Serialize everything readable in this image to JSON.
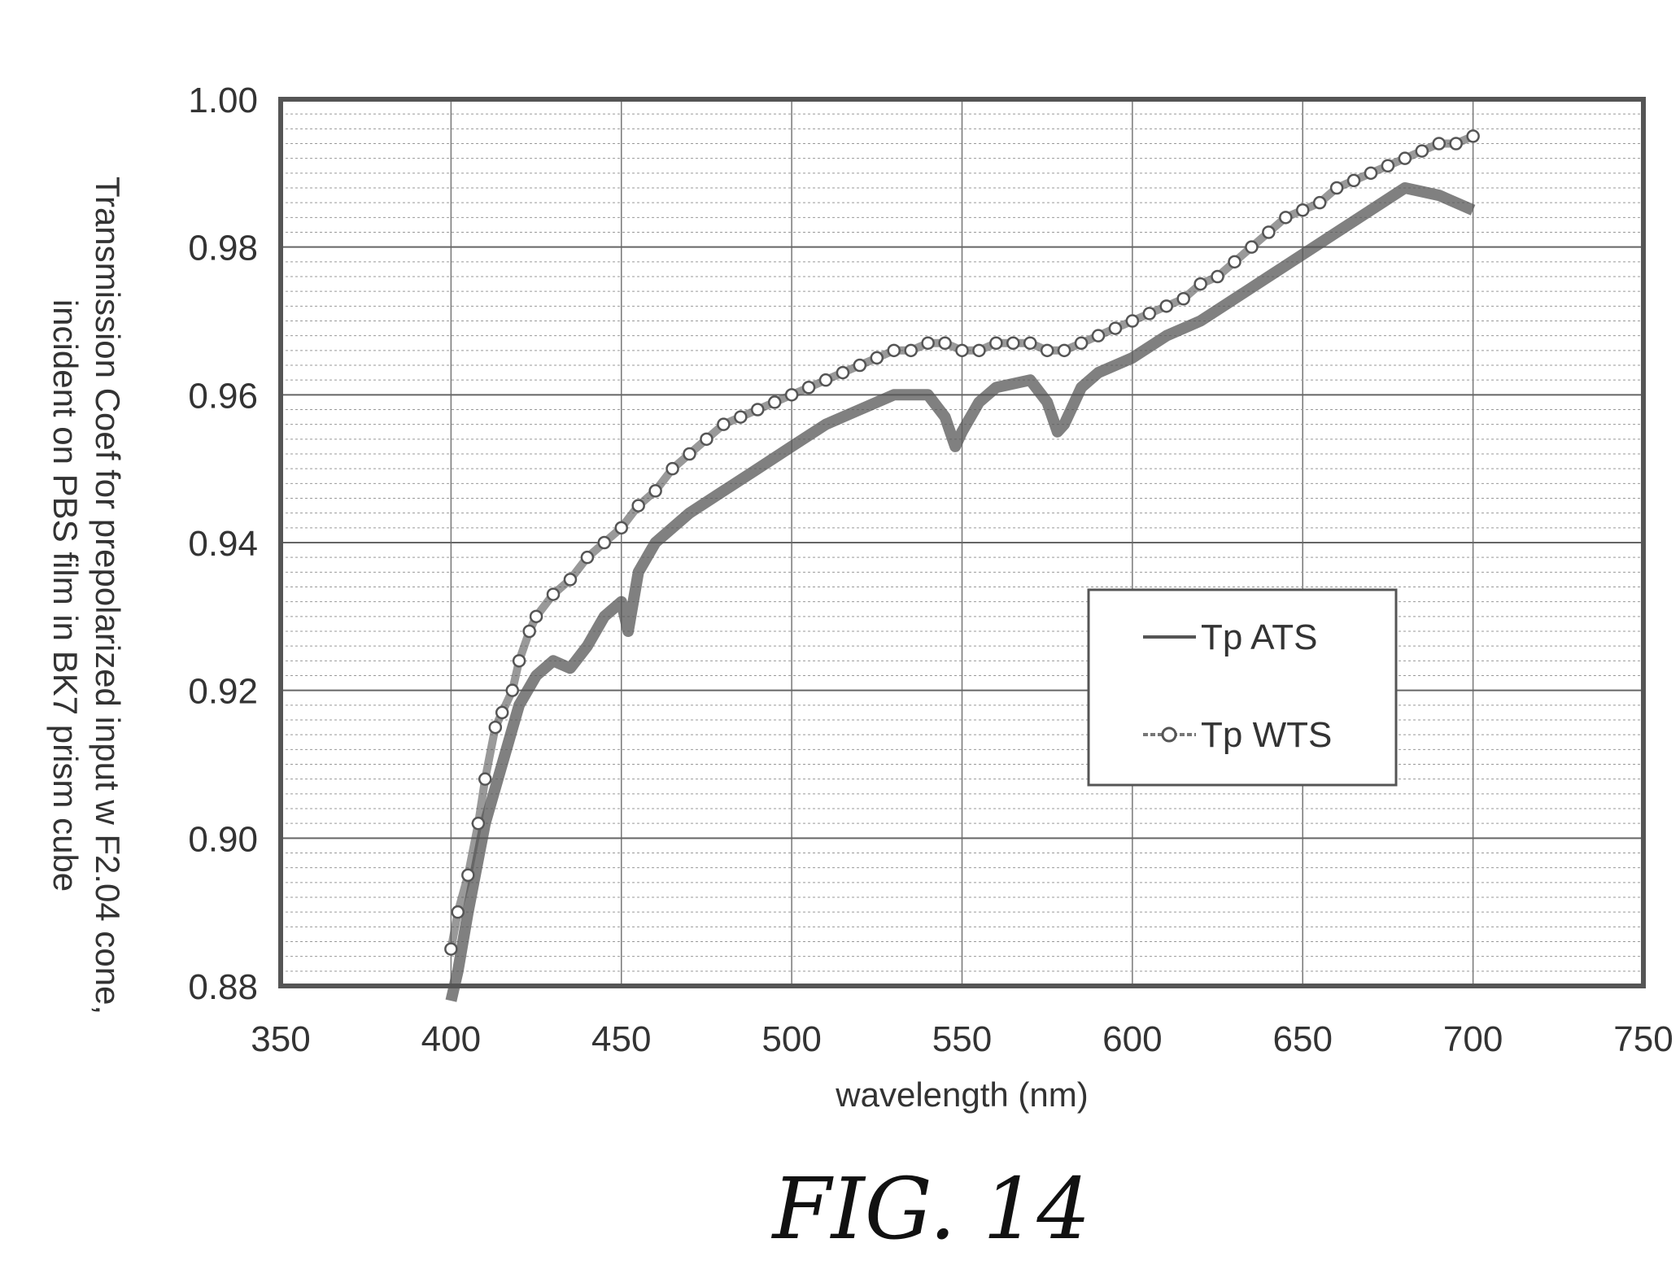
{
  "chart_data": {
    "type": "line",
    "title": "",
    "xlabel": "wavelength (nm)",
    "ylabel": [
      "Transmission Coef for prepolarized input w F2.04 cone,",
      "incident on PBS film in BK7 prism cube"
    ],
    "xlim": [
      350,
      750
    ],
    "ylim": [
      0.88,
      1.0
    ],
    "x_ticks": [
      "350",
      "400",
      "450",
      "500",
      "550",
      "600",
      "650",
      "700",
      "750"
    ],
    "y_ticks": [
      "0.88",
      "0.90",
      "0.92",
      "0.94",
      "0.96",
      "0.98",
      "1.00"
    ],
    "grid": true,
    "legend_position": "right",
    "caption": "FIG. 14",
    "series": [
      {
        "name": "Tp ATS",
        "marker": "none",
        "color": "#555555",
        "x": [
          400,
          402,
          405,
          410,
          415,
          420,
          425,
          430,
          435,
          440,
          445,
          450,
          452,
          455,
          460,
          465,
          470,
          480,
          490,
          500,
          510,
          520,
          530,
          540,
          545,
          548,
          550,
          555,
          560,
          570,
          575,
          578,
          580,
          585,
          590,
          600,
          610,
          620,
          630,
          640,
          650,
          660,
          670,
          680,
          690,
          700
        ],
        "y": [
          0.878,
          0.882,
          0.89,
          0.902,
          0.91,
          0.918,
          0.922,
          0.924,
          0.923,
          0.926,
          0.93,
          0.932,
          0.928,
          0.936,
          0.94,
          0.942,
          0.944,
          0.947,
          0.95,
          0.953,
          0.956,
          0.958,
          0.96,
          0.96,
          0.957,
          0.953,
          0.955,
          0.959,
          0.961,
          0.962,
          0.959,
          0.955,
          0.956,
          0.961,
          0.963,
          0.965,
          0.968,
          0.97,
          0.973,
          0.976,
          0.979,
          0.982,
          0.985,
          0.988,
          0.987,
          0.985
        ]
      },
      {
        "name": "Tp WTS",
        "marker": "circle",
        "color": "#555555",
        "x": [
          400,
          402,
          405,
          408,
          410,
          413,
          415,
          418,
          420,
          423,
          425,
          430,
          435,
          440,
          445,
          450,
          455,
          460,
          465,
          470,
          475,
          480,
          485,
          490,
          495,
          500,
          505,
          510,
          515,
          520,
          525,
          530,
          535,
          540,
          545,
          550,
          555,
          560,
          565,
          570,
          575,
          580,
          585,
          590,
          595,
          600,
          605,
          610,
          615,
          620,
          625,
          630,
          635,
          640,
          645,
          650,
          655,
          660,
          665,
          670,
          675,
          680,
          685,
          690,
          695,
          700
        ],
        "y": [
          0.885,
          0.89,
          0.895,
          0.902,
          0.908,
          0.915,
          0.917,
          0.92,
          0.924,
          0.928,
          0.93,
          0.933,
          0.935,
          0.938,
          0.94,
          0.942,
          0.945,
          0.947,
          0.95,
          0.952,
          0.954,
          0.956,
          0.957,
          0.958,
          0.959,
          0.96,
          0.961,
          0.962,
          0.963,
          0.964,
          0.965,
          0.966,
          0.966,
          0.967,
          0.967,
          0.966,
          0.966,
          0.967,
          0.967,
          0.967,
          0.966,
          0.966,
          0.967,
          0.968,
          0.969,
          0.97,
          0.971,
          0.972,
          0.973,
          0.975,
          0.976,
          0.978,
          0.98,
          0.982,
          0.984,
          0.985,
          0.986,
          0.988,
          0.989,
          0.99,
          0.991,
          0.992,
          0.993,
          0.994,
          0.994,
          0.995
        ]
      }
    ]
  }
}
